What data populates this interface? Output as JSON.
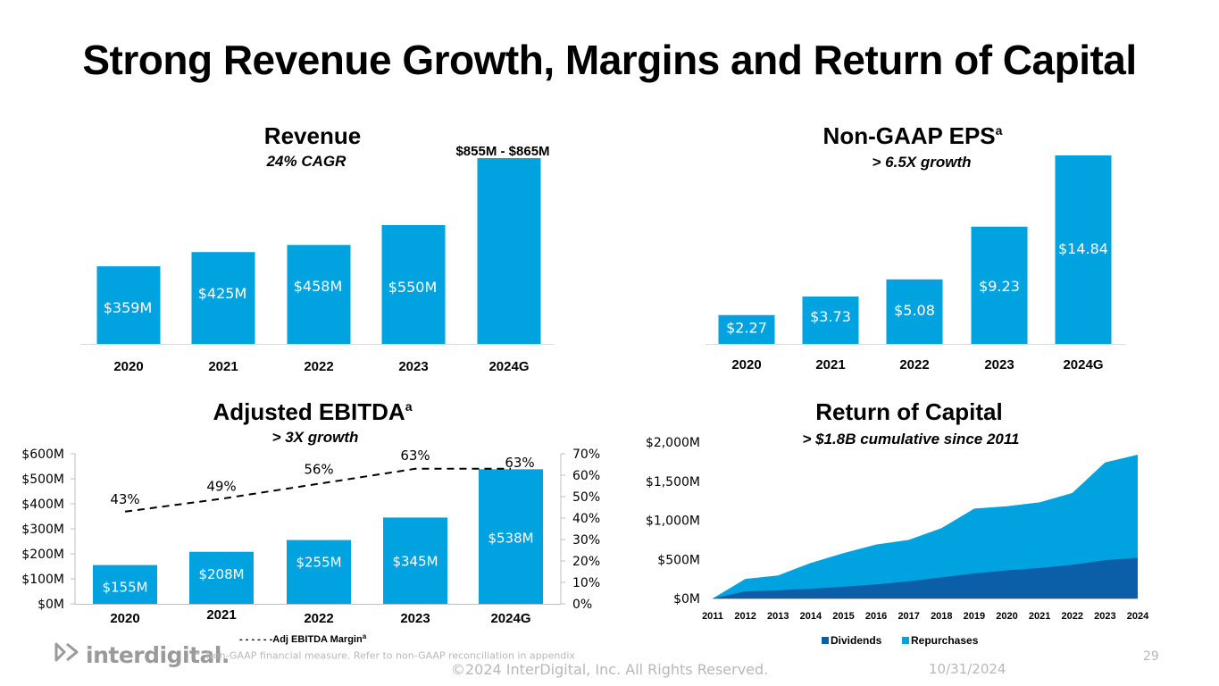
{
  "title": "Strong Revenue Growth, Margins and Return of Capital",
  "chart_data": [
    {
      "type": "bar",
      "title": "Revenue",
      "subtitle": "24% CAGR",
      "categories": [
        "2020",
        "2021",
        "2022",
        "2023",
        "2024G"
      ],
      "values": [
        359,
        425,
        458,
        550,
        860
      ],
      "data_labels": [
        "$359M",
        "$425M",
        "$458M",
        "$550M",
        ""
      ],
      "annotation": "$855M - $865M",
      "color": "#00a3e0"
    },
    {
      "type": "bar",
      "title": "Non-GAAP EPS",
      "title_superscript": "a",
      "subtitle": "> 6.5X growth",
      "categories": [
        "2020",
        "2021",
        "2022",
        "2023",
        "2024G"
      ],
      "values": [
        2.27,
        3.73,
        5.08,
        9.23,
        14.84
      ],
      "data_labels": [
        "$2.27",
        "$3.73",
        "$5.08",
        "$9.23",
        "$14.84"
      ],
      "color": "#00a3e0"
    },
    {
      "type": "bar",
      "title": "Adjusted EBITDA",
      "title_superscript": "a",
      "subtitle": "> 3X growth",
      "categories": [
        "2020",
        "2021",
        "2022",
        "2023",
        "2024G"
      ],
      "values": [
        155,
        208,
        255,
        345,
        538
      ],
      "data_labels": [
        "$155M",
        "$208M",
        "$255M",
        "$345M",
        "$538M"
      ],
      "ylim": [
        0,
        600
      ],
      "y_ticks": [
        "$0M",
        "$100M",
        "$200M",
        "$300M",
        "$400M",
        "$500M",
        "$600M"
      ],
      "y2lim": [
        0,
        70
      ],
      "y2_ticks": [
        "0%",
        "10%",
        "20%",
        "30%",
        "40%",
        "50%",
        "60%",
        "70%"
      ],
      "line_series": {
        "name": "Adj EBITDA Margin",
        "name_superscript": "a",
        "legend_prefix": "- - - - - -",
        "values": [
          43,
          49,
          56,
          63,
          63
        ],
        "labels": [
          "43%",
          "49%",
          "56%",
          "63%",
          "63%"
        ]
      },
      "color": "#00a3e0"
    },
    {
      "type": "area",
      "title": "Return of Capital",
      "subtitle": "> $1.8B cumulative since 2011",
      "x": [
        "2011",
        "2012",
        "2013",
        "2014",
        "2015",
        "2016",
        "2017",
        "2018",
        "2019",
        "2020",
        "2021",
        "2022",
        "2023",
        "2024"
      ],
      "ylim": [
        0,
        2000
      ],
      "y_ticks": [
        "$0M",
        "$500M",
        "$1,000M",
        "$1,500M",
        "$2,000M"
      ],
      "series": [
        {
          "name": "Dividends",
          "color": "#0b5fa8",
          "values": [
            0,
            90,
            105,
            125,
            150,
            180,
            220,
            270,
            320,
            360,
            390,
            430,
            490,
            520
          ]
        },
        {
          "name": "Repurchases",
          "color": "#00a3e0",
          "values": [
            0,
            160,
            190,
            330,
            430,
            510,
            530,
            630,
            830,
            820,
            840,
            920,
            1250,
            1320
          ]
        }
      ],
      "legend_position": "bottom"
    }
  ],
  "footer": {
    "logo": "interdigital.",
    "footnote_marker": "a",
    "footnote": "Non-GAAP financial measure. Refer to non-GAAP reconciliation in appendix",
    "copyright": "©2024 InterDigital, Inc. All Rights Reserved.",
    "date": "10/31/2024",
    "page": "29"
  }
}
